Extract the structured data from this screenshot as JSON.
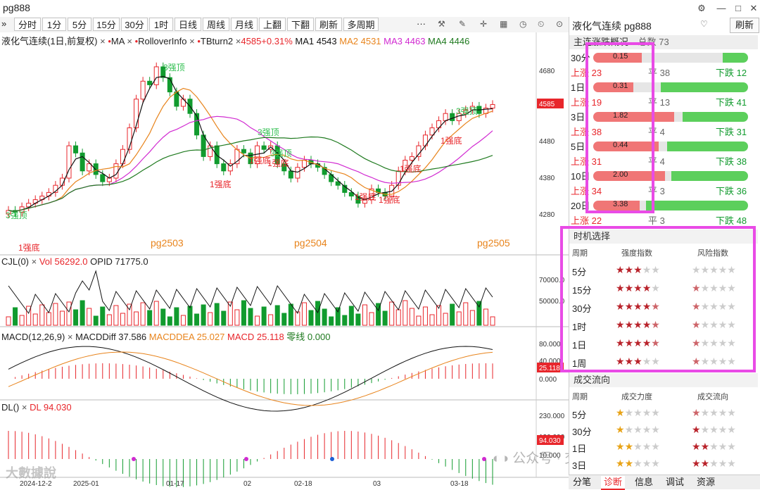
{
  "window": {
    "title": "pg888"
  },
  "toolbar": {
    "expand": "»",
    "periods": [
      "分时",
      "1分",
      "5分",
      "15分",
      "30分",
      "1时",
      "日线",
      "周线",
      "月线",
      "上翻",
      "下翻",
      "刷新",
      "多周期"
    ],
    "more": "···",
    "icons": [
      "settings-icon",
      "draw-icon",
      "crosshair-icon",
      "layout-icon",
      "timer-icon",
      "clock-icon",
      "pin-icon"
    ]
  },
  "main_chart": {
    "header": {
      "name": "液化气连续(1日,前复权)",
      "ind1": "MA",
      "ind2": "RolloverInfo",
      "ind3": "TBturn2",
      "price": "4585",
      "change": "+0.31%",
      "ma1": "MA1 4543",
      "ma2": "MA2 4531",
      "ma3": "MA3 4463",
      "ma4": "MA4 4446"
    },
    "y_ticks": [
      "4680",
      "4580",
      "4480",
      "4380",
      "4280"
    ],
    "last_price_tag": "4585",
    "contract_labels": [
      "pg2503",
      "pg2504",
      "pg2505"
    ],
    "signals_top": [
      "3强顶",
      "3强顶",
      "3强顶",
      "3强顶"
    ],
    "signals_bottom": [
      "1强底",
      "1强底",
      "1强底",
      "1强底",
      "1强底",
      "1强底",
      "1强底",
      "1强底"
    ],
    "misc_label": "3强顶"
  },
  "vol_panel": {
    "header": {
      "name": "CJL(0)",
      "vol": "Vol 56292.0",
      "opid": "OPID 71775.0"
    },
    "y_ticks": [
      "70000.0",
      "50000.0"
    ]
  },
  "macd_panel": {
    "header": {
      "name": "MACD(12,26,9)",
      "diff": "MACDDiff 37.586",
      "dea": "MACDDEA 25.027",
      "macd": "MACD 25.118",
      "zero": "零线 0.000"
    },
    "y_ticks": [
      "80.000",
      "40.000",
      "0.000"
    ],
    "tag": "25.118"
  },
  "dl_panel": {
    "header": {
      "name": "DL()",
      "dl": "DL 94.030"
    },
    "y_ticks": [
      "230.000",
      "130.000",
      "10.000"
    ],
    "tag": "94.030"
  },
  "x_axis": [
    "2024-12-2",
    "2025-01",
    "01-17",
    "02",
    "02-18",
    "03",
    "03-18"
  ],
  "watermarks": {
    "left": "大數據說",
    "right": "公众号 · 交易开拓者TB"
  },
  "right_panel": {
    "title": "液化气连续 pg888",
    "refresh": "刷新",
    "overview": {
      "label": "主连涨跌概况",
      "total": "总数 73",
      "rows": [
        {
          "period": "30分",
          "value": "0.15",
          "up": "上涨 23",
          "flat": "平 38",
          "down": "下跌 12",
          "up_n": 23,
          "flat_n": 38,
          "down_n": 12
        },
        {
          "period": "1日",
          "value": "0.31",
          "up": "上涨 19",
          "flat": "平 13",
          "down": "下跌 41",
          "up_n": 19,
          "flat_n": 13,
          "down_n": 41
        },
        {
          "period": "3日",
          "value": "1.82",
          "up": "上涨 38",
          "flat": "平 4",
          "down": "下跌 31",
          "up_n": 38,
          "flat_n": 4,
          "down_n": 31
        },
        {
          "period": "5日",
          "value": "0.44",
          "up": "上涨 31",
          "flat": "平 4",
          "down": "下跌 38",
          "up_n": 31,
          "flat_n": 4,
          "down_n": 38
        },
        {
          "period": "10日",
          "value": "2.00",
          "up": "上涨 34",
          "flat": "平 3",
          "down": "下跌 36",
          "up_n": 34,
          "flat_n": 3,
          "down_n": 36
        },
        {
          "period": "20日",
          "value": "3.38",
          "up": "上涨 22",
          "flat": "平 3",
          "down": "下跌 48",
          "up_n": 22,
          "flat_n": 3,
          "down_n": 48
        }
      ]
    },
    "timing": {
      "label": "时机选择",
      "cols": [
        "周期",
        "强度指数",
        "风险指数"
      ],
      "rows": [
        {
          "period": "5分",
          "strength": 3,
          "risk": 0
        },
        {
          "period": "15分",
          "strength": 4,
          "risk": 0.5
        },
        {
          "period": "30分",
          "strength": 4.5,
          "risk": 0.5
        },
        {
          "period": "1时",
          "strength": 4.5,
          "risk": 0.5
        },
        {
          "period": "1日",
          "strength": 4.5,
          "risk": 0.5
        },
        {
          "period": "1周",
          "strength": 3,
          "risk": 0.5
        }
      ]
    },
    "flow": {
      "label": "成交流向",
      "cols": [
        "周期",
        "成交力度",
        "成交流向"
      ],
      "rows": [
        {
          "period": "5分",
          "strength": 1,
          "dir": 0.5
        },
        {
          "period": "30分",
          "strength": 1,
          "dir": 1
        },
        {
          "period": "1日",
          "strength": 2,
          "dir": 2
        },
        {
          "period": "3日",
          "strength": 2,
          "dir": 2
        }
      ]
    },
    "tabs": [
      "分笔",
      "诊断",
      "信息",
      "调试",
      "资源"
    ],
    "active_tab": "诊断"
  },
  "colors": {
    "up": "#e8262b",
    "down": "#119b2e",
    "ma1": "#111111",
    "ma2": "#e8841c",
    "ma3": "#d12ad1",
    "ma4": "#1f7a1f",
    "highlight": "#e94be6"
  }
}
